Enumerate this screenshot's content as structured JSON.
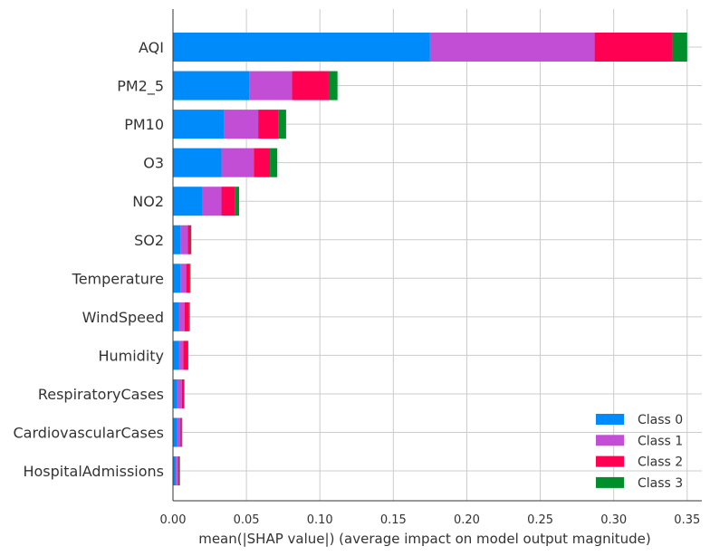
{
  "chart_data": {
    "type": "bar",
    "orientation": "horizontal",
    "stacked": true,
    "title": "",
    "xlabel": "mean(|SHAP value|) (average impact on model output magnitude)",
    "ylabel": "",
    "xlim": [
      0,
      0.36
    ],
    "xticks": [
      "0.00",
      "0.05",
      "0.10",
      "0.15",
      "0.20",
      "0.25",
      "0.30",
      "0.35"
    ],
    "xtick_values": [
      0,
      0.05,
      0.1,
      0.15,
      0.2,
      0.25,
      0.3,
      0.35
    ],
    "grid": true,
    "legend_position": "bottom-right",
    "categories": [
      "AQI",
      "PM2_5",
      "PM10",
      "O3",
      "NO2",
      "SO2",
      "Temperature",
      "WindSpeed",
      "Humidity",
      "RespiratoryCases",
      "CardiovascularCases",
      "HospitalAdmissions"
    ],
    "series": [
      {
        "name": "Class 0",
        "color": "#008bfb",
        "values": [
          0.175,
          0.052,
          0.035,
          0.033,
          0.02,
          0.005,
          0.005,
          0.004,
          0.004,
          0.003,
          0.003,
          0.002
        ]
      },
      {
        "name": "Class 1",
        "color": "#c24ed6",
        "values": [
          0.112,
          0.029,
          0.023,
          0.022,
          0.013,
          0.005,
          0.004,
          0.004,
          0.003,
          0.003,
          0.002,
          0.0015
        ]
      },
      {
        "name": "Class 2",
        "color": "#ff0052",
        "values": [
          0.053,
          0.025,
          0.014,
          0.011,
          0.009,
          0.002,
          0.0025,
          0.003,
          0.003,
          0.0015,
          0.001,
          0.001
        ]
      },
      {
        "name": "Class 3",
        "color": "#008f2b",
        "values": [
          0.01,
          0.006,
          0.005,
          0.005,
          0.003,
          0.0005,
          0.0005,
          0.0005,
          0.0005,
          0.0003,
          0.0003,
          0.0003
        ]
      }
    ]
  }
}
